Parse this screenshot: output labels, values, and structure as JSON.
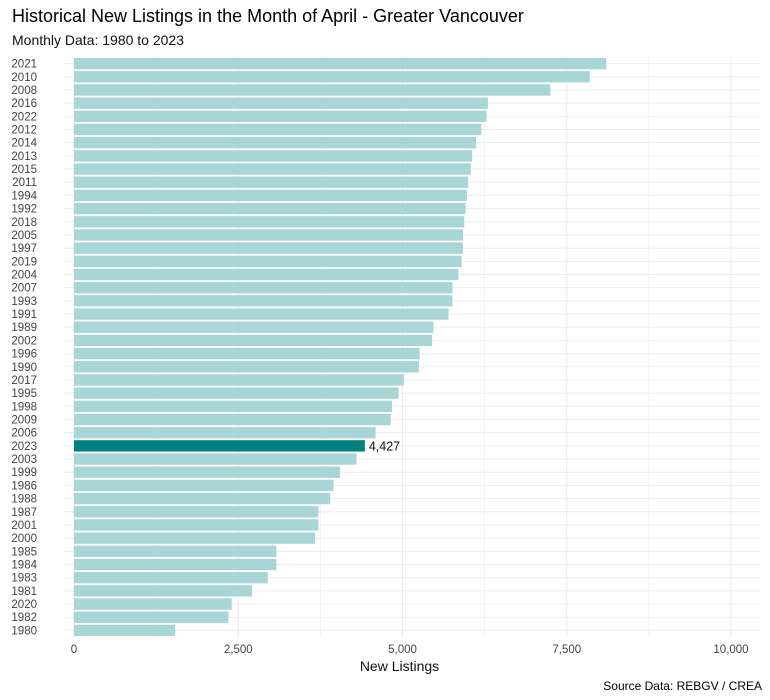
{
  "title": "Historical New Listings in the Month of April - Greater Vancouver",
  "subtitle": "Monthly Data: 1980 to 2023",
  "caption": "Source Data: REBGV / CREA",
  "colors": {
    "bar": "#a8d5d5",
    "highlight": "#008080",
    "grid": "#ebebeb"
  },
  "chart_data": {
    "type": "bar",
    "orientation": "horizontal",
    "xlabel": "New Listings",
    "ylabel": "",
    "xlim": [
      0,
      10500
    ],
    "x_ticks": [
      "0",
      "2,500",
      "5,000",
      "7,500",
      "10,000"
    ],
    "x_tick_values": [
      0,
      2500,
      5000,
      7500,
      10000
    ],
    "grid": true,
    "highlight": "2023",
    "highlight_label": "4,427",
    "categories": [
      "2021",
      "2010",
      "2008",
      "2016",
      "2022",
      "2012",
      "2014",
      "2013",
      "2015",
      "2011",
      "1994",
      "1992",
      "2018",
      "2005",
      "1997",
      "2019",
      "2004",
      "2007",
      "1993",
      "1991",
      "1989",
      "2002",
      "1996",
      "1990",
      "2017",
      "1995",
      "1998",
      "2009",
      "2006",
      "2023",
      "2003",
      "1999",
      "1986",
      "1988",
      "1987",
      "2001",
      "2000",
      "1985",
      "1984",
      "1983",
      "1981",
      "2020",
      "1982",
      "1980"
    ],
    "values": [
      8100,
      7850,
      7250,
      6300,
      6280,
      6200,
      6120,
      6060,
      6040,
      6000,
      5980,
      5960,
      5940,
      5920,
      5920,
      5900,
      5850,
      5760,
      5760,
      5700,
      5470,
      5450,
      5260,
      5250,
      5020,
      4940,
      4840,
      4820,
      4590,
      4427,
      4300,
      4050,
      3950,
      3900,
      3720,
      3720,
      3670,
      3080,
      3080,
      2950,
      2710,
      2400,
      2350,
      1540
    ]
  }
}
